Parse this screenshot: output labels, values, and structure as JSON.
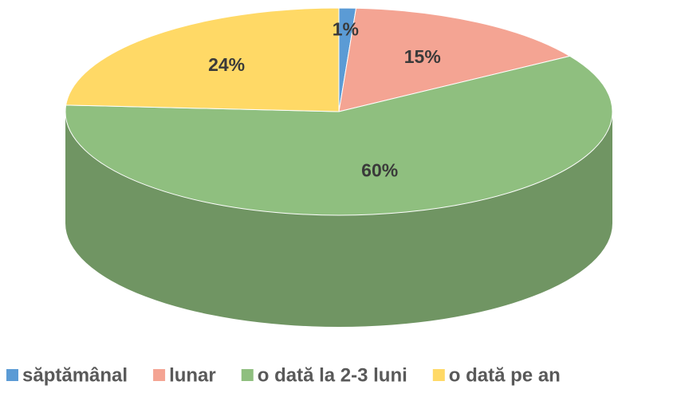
{
  "chart_data": {
    "type": "pie",
    "categories": [
      "săptămânal",
      "lunar",
      "o dată la 2-3 luni",
      "o dată pe an"
    ],
    "values": [
      1,
      15,
      60,
      24
    ],
    "value_labels": [
      "1%",
      "15%",
      "60%",
      "24%"
    ],
    "colors": [
      "#5b9bd5",
      "#f4a493",
      "#8fbf7f",
      "#ffd966"
    ],
    "legend": "bottom"
  }
}
